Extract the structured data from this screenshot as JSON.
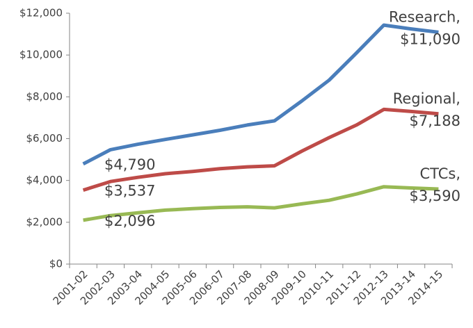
{
  "chart_data": {
    "type": "line",
    "categories": [
      "2001-02",
      "2002-03",
      "2003-04",
      "2004-05",
      "2005-06",
      "2006-07",
      "2007-08",
      "2008-09",
      "2009-10",
      "2010-11",
      "2011-12",
      "2012-13",
      "2013-14",
      "2014-15"
    ],
    "series": [
      {
        "name": "Research,",
        "color": "#4a7ebb",
        "values": [
          4790,
          5470,
          5730,
          5960,
          6180,
          6400,
          6650,
          6850,
          7800,
          8800,
          10100,
          11430,
          11250,
          11090
        ],
        "value_labels": [
          "$4,790",
          null,
          null,
          null,
          null,
          null,
          null,
          null,
          null,
          null,
          null,
          null,
          null,
          "$11,090"
        ]
      },
      {
        "name": "Regional,",
        "color": "#be4b48",
        "values": [
          3537,
          3950,
          4150,
          4320,
          4430,
          4560,
          4650,
          4700,
          5400,
          6050,
          6650,
          7400,
          7300,
          7188
        ],
        "value_labels": [
          "$3,537",
          null,
          null,
          null,
          null,
          null,
          null,
          null,
          null,
          null,
          null,
          null,
          null,
          "$7,188"
        ]
      },
      {
        "name": "CTCs,",
        "color": "#98b954",
        "values": [
          2096,
          2320,
          2450,
          2580,
          2650,
          2710,
          2740,
          2690,
          2880,
          3050,
          3350,
          3700,
          3640,
          3590
        ],
        "value_labels": [
          "$2,096",
          null,
          null,
          null,
          null,
          null,
          null,
          null,
          null,
          null,
          null,
          null,
          null,
          "$3,590"
        ]
      }
    ],
    "ylim": [
      0,
      12000
    ],
    "yticks": [
      {
        "value": 0,
        "label": "$0"
      },
      {
        "value": 2000,
        "label": "$2,000"
      },
      {
        "value": 4000,
        "label": "$4,000"
      },
      {
        "value": 6000,
        "label": "$6,000"
      },
      {
        "value": 8000,
        "label": "$8,000"
      },
      {
        "value": 10000,
        "label": "$10,000"
      },
      {
        "value": 12000,
        "label": "$12,000"
      }
    ],
    "grid": false
  }
}
